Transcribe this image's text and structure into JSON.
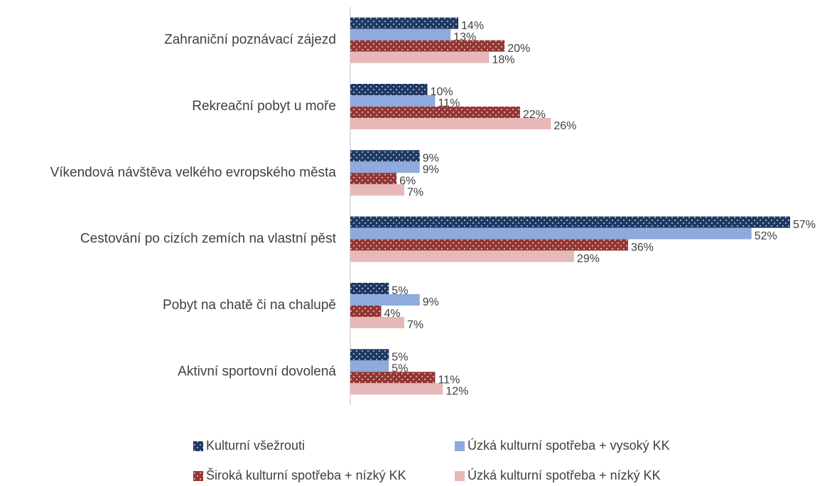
{
  "chart_data": {
    "type": "hbar",
    "categories": [
      "Zahraniční poznávací zájezd",
      "Rekreační pobyt u moře",
      "Víkendová návštěva velkého evropského města",
      "Cestování po cizích zemích na vlastní pěst",
      "Pobyt na chatě či na chalupě",
      "Aktivní sportovní dovolená"
    ],
    "series": [
      {
        "name": "Kulturní všežrouti",
        "color": "#1f3864",
        "dotted": true,
        "values": [
          14,
          10,
          9,
          57,
          5,
          5
        ],
        "value_labels": [
          "14%",
          "10%",
          "9%",
          "57%",
          "5%",
          "5%"
        ]
      },
      {
        "name": "Úzká kulturní spotřeba + vysoký KK",
        "color": "#8faadc",
        "dotted": false,
        "values": [
          13,
          11,
          9,
          52,
          9,
          5
        ],
        "value_labels": [
          "13%",
          "11%",
          "9%",
          "52%",
          "9%",
          "5%"
        ]
      },
      {
        "name": "Široká kulturní spotřeba + nízký KK",
        "color": "#943634",
        "dotted": true,
        "values": [
          20,
          22,
          6,
          36,
          4,
          11
        ],
        "value_labels": [
          "20%",
          "22%",
          "6%",
          "36%",
          "4%",
          "11%"
        ]
      },
      {
        "name": "Úzká kulturní spotřeba + nízký KK",
        "color": "#e6b9b8",
        "dotted": false,
        "values": [
          18,
          26,
          7,
          29,
          7,
          12
        ],
        "value_labels": [
          "18%",
          "26%",
          "7%",
          "29%",
          "7%",
          "12%"
        ]
      }
    ],
    "legend": "bottom"
  }
}
